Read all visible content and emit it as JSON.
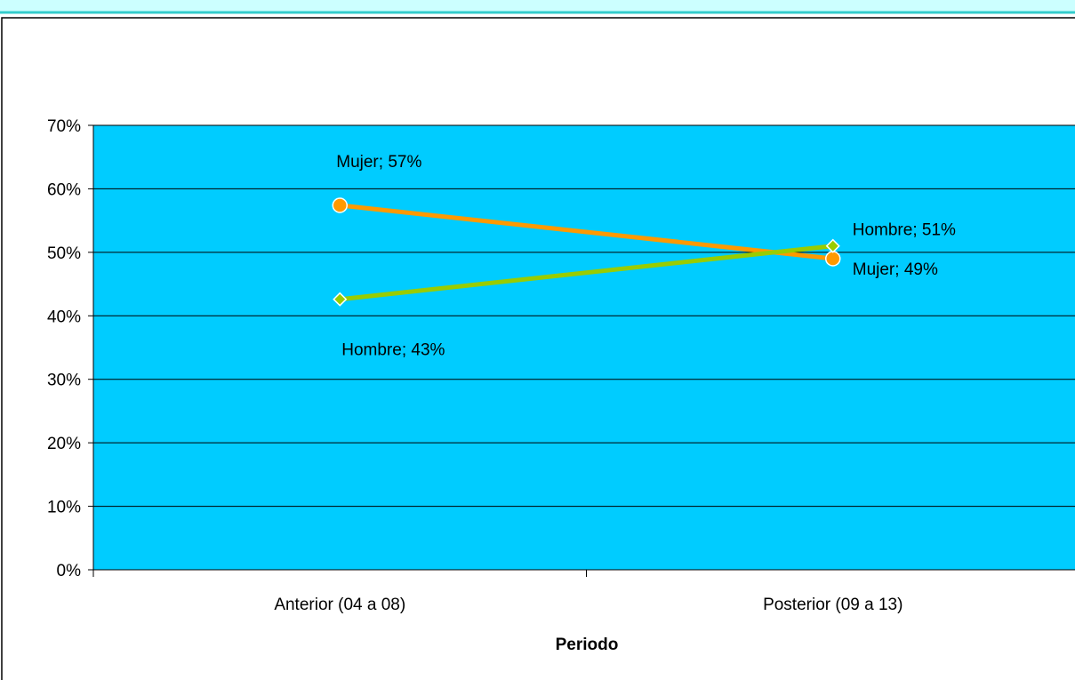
{
  "chart_data": {
    "type": "line",
    "title": "",
    "xlabel": "Periodo",
    "ylabel": "",
    "categories": [
      "Anterior (04 a 08)",
      "Posterior (09 a 13)"
    ],
    "ylim": [
      0,
      70
    ],
    "yticks": [
      0,
      10,
      20,
      30,
      40,
      50,
      60,
      70
    ],
    "ytick_suffix": "%",
    "grid": true,
    "plot_background": "#00CCFF",
    "series": [
      {
        "name": "Mujer",
        "values": [
          57.4,
          49
        ],
        "labels": [
          "Mujer; 57%",
          "Mujer; 49%"
        ],
        "color": "#FF9900",
        "marker": "circle"
      },
      {
        "name": "Hombre",
        "values": [
          42.6,
          51
        ],
        "labels": [
          "Hombre; 43%",
          "Hombre; 51%"
        ],
        "color": "#99CC00",
        "marker": "diamond"
      }
    ]
  },
  "colors": {
    "top_band": "#CCFFFF",
    "top_band_border": "#33CCCC",
    "plot_background": "#00CCFF",
    "mujer": "#FF9900",
    "hombre": "#99CC00"
  }
}
